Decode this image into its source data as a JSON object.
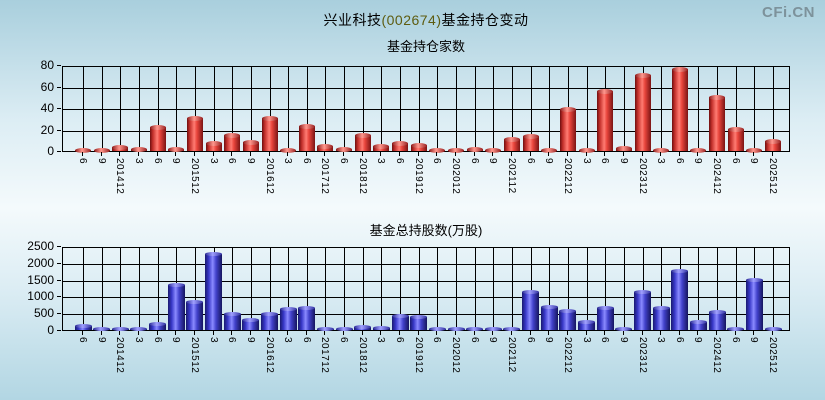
{
  "header": {
    "stock_name": "兴业科技",
    "stock_code": "(002674)",
    "title_suffix": "基金持仓变动",
    "logo": "CFi.CN"
  },
  "colors": {
    "red_bar": "#e8453c",
    "blue_bar": "#3939c9",
    "logo_gray": "#7d929b",
    "grid": "#000000"
  },
  "chart_data": [
    {
      "type": "bar",
      "title": "基金持仓家数",
      "ylabel": "",
      "xlabel": "",
      "ylim": [
        0,
        80
      ],
      "yticks": [
        0,
        20,
        40,
        60,
        80
      ],
      "grid": true,
      "bar_style": "red-cylinder",
      "categories": [
        "6",
        "9",
        "201412",
        "3",
        "6",
        "9",
        "201512",
        "3",
        "6",
        "9",
        "201612",
        "3",
        "6",
        "201712",
        "6",
        "201812",
        "3",
        "6",
        "201912",
        "6",
        "202012",
        "6",
        "9",
        "202112",
        "6",
        "9",
        "202212",
        "3",
        "6",
        "9",
        "202312",
        "3",
        "6",
        "9",
        "202412",
        "6",
        "9",
        "202512"
      ],
      "values": [
        1,
        1,
        4,
        2,
        22,
        2,
        31,
        7,
        15,
        8,
        31,
        1,
        23,
        5,
        2,
        15,
        5,
        7,
        6,
        1,
        1,
        2,
        1,
        11,
        14,
        1,
        39,
        1,
        56,
        3,
        71,
        1,
        76,
        1,
        50,
        20,
        1,
        9
      ]
    },
    {
      "type": "bar",
      "title": "基金总持股数(万股)",
      "ylabel": "",
      "xlabel": "",
      "ylim": [
        0,
        2500
      ],
      "yticks": [
        0,
        500,
        1000,
        1500,
        2000,
        2500
      ],
      "grid": true,
      "bar_style": "blue-block",
      "categories": [
        "6",
        "9",
        "201412",
        "3",
        "6",
        "9",
        "201512",
        "3",
        "6",
        "9",
        "201612",
        "3",
        "6",
        "201712",
        "6",
        "201812",
        "3",
        "6",
        "201912",
        "6",
        "202012",
        "6",
        "9",
        "202112",
        "6",
        "9",
        "202212",
        "3",
        "6",
        "9",
        "202312",
        "3",
        "6",
        "9",
        "202412",
        "6",
        "9",
        "202512"
      ],
      "values": [
        120,
        20,
        40,
        25,
        180,
        1340,
        820,
        2270,
        480,
        300,
        480,
        620,
        650,
        20,
        30,
        100,
        50,
        420,
        380,
        20,
        30,
        30,
        20,
        20,
        1120,
        670,
        570,
        250,
        660,
        30,
        1120,
        640,
        1760,
        250,
        530,
        40,
        1480,
        20
      ]
    }
  ]
}
